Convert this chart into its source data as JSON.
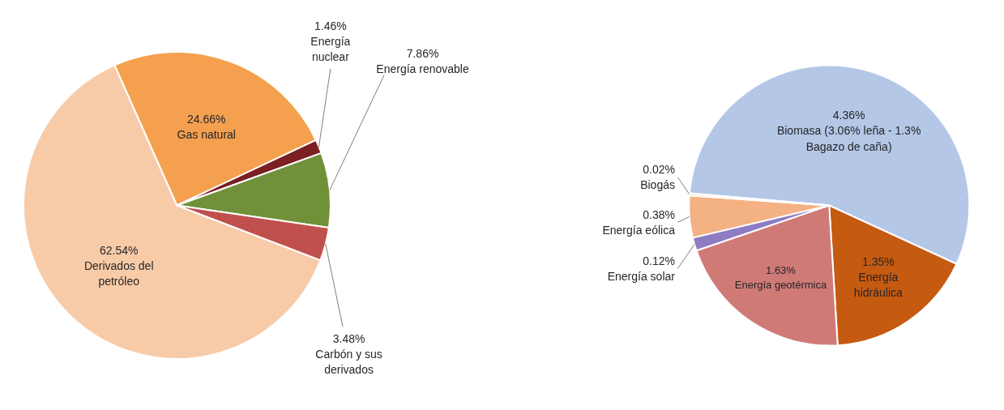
{
  "chart_data": [
    {
      "type": "pie",
      "categories": [
        "Derivados del petróleo",
        "Gas natural",
        "Energía nuclear",
        "Energía renovable",
        "Carbón y sus derivados"
      ],
      "values": [
        62.54,
        24.66,
        1.46,
        7.86,
        3.48
      ],
      "value_labels": [
        "62.54%",
        "24.66%",
        "1.46%",
        "7.86%",
        "3.48%"
      ],
      "colors": [
        "#f8cba8",
        "#f4a04f",
        "#7b1f22",
        "#70913a",
        "#c0504d"
      ]
    },
    {
      "type": "pie",
      "categories": [
        "Biomasa (3.06% leña - 1.3% Bagazo de caña)",
        "Energía hidráulica",
        "Energía geotérmica",
        "Energía solar",
        "Energía eólica",
        "Biogás"
      ],
      "values": [
        4.36,
        1.35,
        1.63,
        0.12,
        0.38,
        0.02
      ],
      "value_labels": [
        "4.36%",
        "1.35%",
        "1.63%",
        "0.12%",
        "0.38%",
        "0.02%"
      ],
      "colors": [
        "#b4c7e7",
        "#c55a11",
        "#d07a78",
        "#8e7cc3",
        "#f4b183",
        "#f6d0a8"
      ]
    }
  ]
}
